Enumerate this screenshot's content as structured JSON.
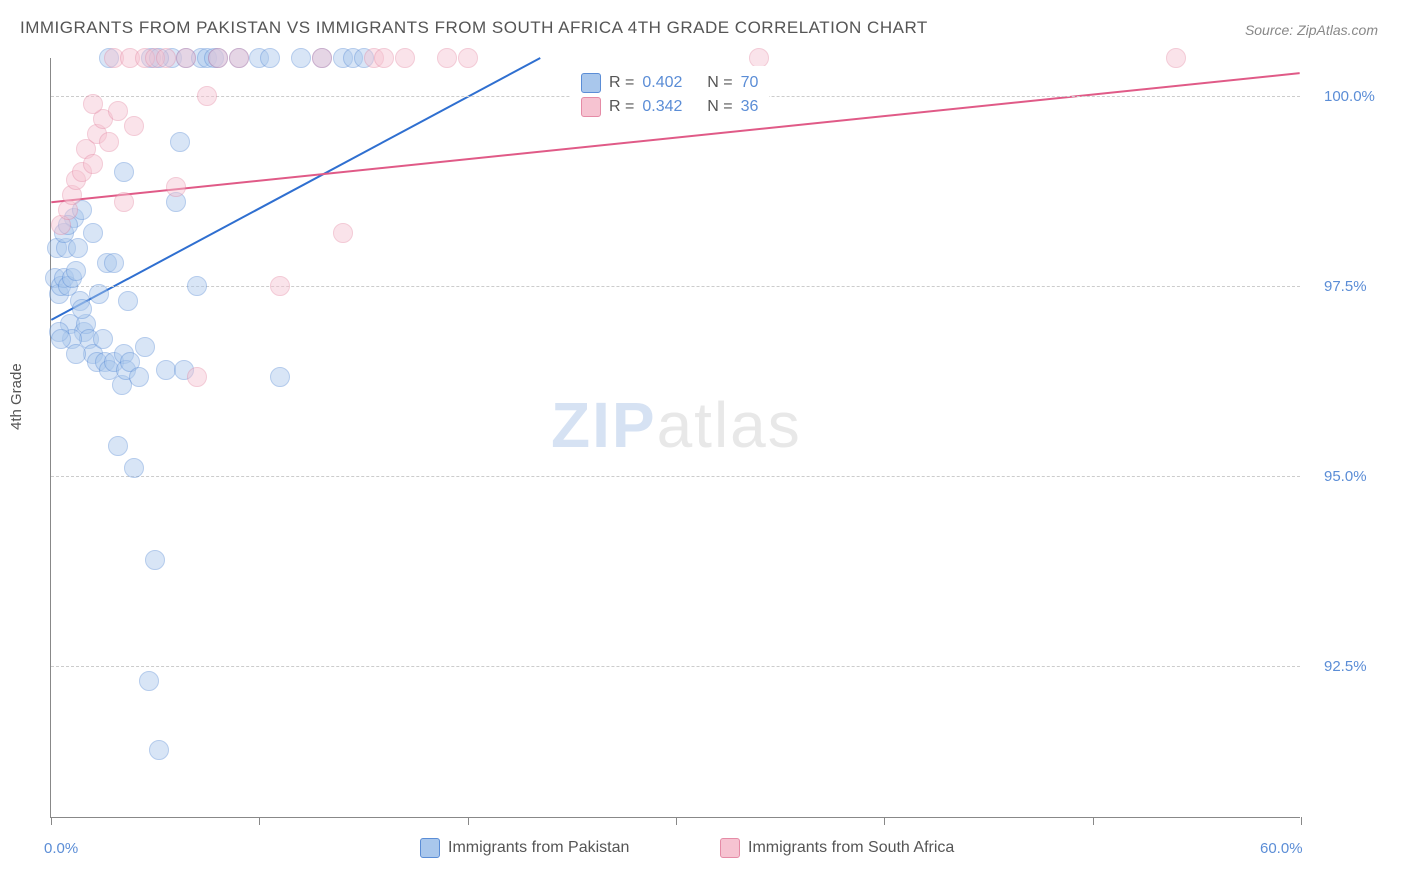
{
  "title": "IMMIGRANTS FROM PAKISTAN VS IMMIGRANTS FROM SOUTH AFRICA 4TH GRADE CORRELATION CHART",
  "source": "Source: ZipAtlas.com",
  "ylabel": "4th Grade",
  "watermark": {
    "part1": "ZIP",
    "part2": "atlas"
  },
  "chart": {
    "type": "scatter",
    "background_color": "#ffffff",
    "grid_color": "#cccccc",
    "xlim": [
      0,
      60
    ],
    "ylim": [
      90.5,
      100.5
    ],
    "xtick_positions": [
      0,
      10,
      20,
      30,
      40,
      50,
      60
    ],
    "xtick_labels": {
      "0": "0.0%",
      "60": "60.0%"
    },
    "ytick_positions": [
      92.5,
      95.0,
      97.5,
      100.0
    ],
    "ytick_labels": [
      "92.5%",
      "95.0%",
      "97.5%",
      "100.0%"
    ],
    "tick_fontsize": 15,
    "tick_color": "#5b8dd6",
    "label_fontsize": 15,
    "marker_radius": 10,
    "marker_opacity": 0.45,
    "series": [
      {
        "name": "Immigrants from Pakistan",
        "fill_color": "#a9c7ec",
        "stroke_color": "#5b8dd6",
        "line_color": "#2f6fd0",
        "R": "0.402",
        "N": "70",
        "trend": {
          "x1": 0,
          "y1": 97.05,
          "x2": 23.5,
          "y2": 100.5
        },
        "points": [
          [
            0.2,
            97.6
          ],
          [
            0.3,
            98.0
          ],
          [
            0.4,
            97.4
          ],
          [
            0.5,
            97.5
          ],
          [
            0.6,
            97.6
          ],
          [
            0.7,
            98.0
          ],
          [
            0.8,
            97.5
          ],
          [
            0.9,
            97.0
          ],
          [
            1.0,
            97.6
          ],
          [
            1.1,
            98.4
          ],
          [
            1.2,
            97.7
          ],
          [
            1.3,
            98.0
          ],
          [
            1.4,
            97.3
          ],
          [
            1.5,
            98.5
          ],
          [
            1.6,
            96.9
          ],
          [
            1.7,
            97.0
          ],
          [
            1.8,
            96.8
          ],
          [
            2.0,
            96.6
          ],
          [
            2.2,
            96.5
          ],
          [
            2.5,
            96.8
          ],
          [
            2.6,
            96.5
          ],
          [
            2.7,
            97.8
          ],
          [
            2.8,
            96.4
          ],
          [
            3.0,
            96.5
          ],
          [
            3.2,
            95.4
          ],
          [
            3.4,
            96.2
          ],
          [
            3.5,
            96.6
          ],
          [
            3.6,
            96.4
          ],
          [
            3.7,
            97.3
          ],
          [
            3.8,
            96.5
          ],
          [
            4.0,
            95.1
          ],
          [
            4.2,
            96.3
          ],
          [
            4.5,
            96.7
          ],
          [
            4.7,
            92.3
          ],
          [
            5.0,
            93.9
          ],
          [
            5.2,
            91.4
          ],
          [
            5.5,
            96.4
          ],
          [
            5.8,
            100.5
          ],
          [
            6.0,
            98.6
          ],
          [
            6.2,
            99.4
          ],
          [
            6.5,
            100.5
          ],
          [
            7.0,
            97.5
          ],
          [
            7.2,
            100.5
          ],
          [
            7.5,
            100.5
          ],
          [
            7.8,
            100.5
          ],
          [
            8.0,
            100.5
          ],
          [
            9.0,
            100.5
          ],
          [
            10.0,
            100.5
          ],
          [
            10.5,
            100.5
          ],
          [
            11.0,
            96.3
          ],
          [
            12.0,
            100.5
          ],
          [
            13.0,
            100.5
          ],
          [
            14.0,
            100.5
          ],
          [
            14.5,
            100.5
          ],
          [
            15.0,
            100.5
          ],
          [
            1.0,
            96.8
          ],
          [
            1.2,
            96.6
          ],
          [
            1.5,
            97.2
          ],
          [
            0.6,
            98.2
          ],
          [
            0.8,
            98.3
          ],
          [
            2.0,
            98.2
          ],
          [
            2.3,
            97.4
          ],
          [
            0.4,
            96.9
          ],
          [
            0.5,
            96.8
          ],
          [
            3.0,
            97.8
          ],
          [
            3.5,
            99.0
          ],
          [
            2.8,
            100.5
          ],
          [
            4.8,
            100.5
          ],
          [
            5.2,
            100.5
          ],
          [
            6.4,
            96.4
          ]
        ]
      },
      {
        "name": "Immigrants from South Africa",
        "fill_color": "#f6c3d1",
        "stroke_color": "#e58ba6",
        "line_color": "#e05a87",
        "R": "0.342",
        "N": "36",
        "trend": {
          "x1": 0,
          "y1": 98.6,
          "x2": 60,
          "y2": 100.3
        },
        "points": [
          [
            0.5,
            98.3
          ],
          [
            0.8,
            98.5
          ],
          [
            1.0,
            98.7
          ],
          [
            1.2,
            98.9
          ],
          [
            1.5,
            99.0
          ],
          [
            1.7,
            99.3
          ],
          [
            2.0,
            99.1
          ],
          [
            2.2,
            99.5
          ],
          [
            2.5,
            99.7
          ],
          [
            2.8,
            99.4
          ],
          [
            3.0,
            100.5
          ],
          [
            3.2,
            99.8
          ],
          [
            3.5,
            98.6
          ],
          [
            3.8,
            100.5
          ],
          [
            4.0,
            99.6
          ],
          [
            4.5,
            100.5
          ],
          [
            5.0,
            100.5
          ],
          [
            5.5,
            100.5
          ],
          [
            6.0,
            98.8
          ],
          [
            6.5,
            100.5
          ],
          [
            7.0,
            96.3
          ],
          [
            7.5,
            100.0
          ],
          [
            8.0,
            100.5
          ],
          [
            9.0,
            100.5
          ],
          [
            11.0,
            97.5
          ],
          [
            13.0,
            100.5
          ],
          [
            14.0,
            98.2
          ],
          [
            15.5,
            100.5
          ],
          [
            16.0,
            100.5
          ],
          [
            17.0,
            100.5
          ],
          [
            19.0,
            100.5
          ],
          [
            20.0,
            100.5
          ],
          [
            32.5,
            100.1
          ],
          [
            34.0,
            100.5
          ],
          [
            54.0,
            100.5
          ],
          [
            2.0,
            99.9
          ]
        ]
      }
    ],
    "legend_inset": {
      "label_R": "R =",
      "label_N": "N ="
    },
    "legend_bottom": [
      {
        "series_idx": 0
      },
      {
        "series_idx": 1
      }
    ]
  }
}
